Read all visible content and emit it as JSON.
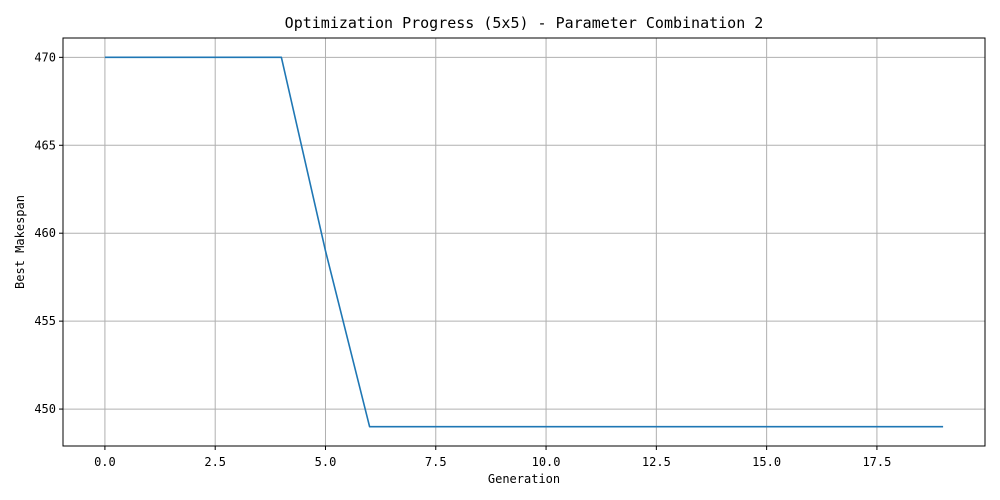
{
  "chart_data": {
    "type": "line",
    "title": "Optimization Progress (5x5) - Parameter Combination 2",
    "xlabel": "Generation",
    "ylabel": "Best Makespan",
    "xlim": [
      -0.95,
      19.95
    ],
    "ylim": [
      447.9,
      471.1
    ],
    "xticks": [
      0.0,
      2.5,
      5.0,
      7.5,
      10.0,
      12.5,
      15.0,
      17.5
    ],
    "xtick_labels": [
      "0.0",
      "2.5",
      "5.0",
      "7.5",
      "10.0",
      "12.5",
      "15.0",
      "17.5"
    ],
    "yticks": [
      450,
      455,
      460,
      465,
      470
    ],
    "ytick_labels": [
      "450",
      "455",
      "460",
      "465",
      "470"
    ],
    "grid": true,
    "series": [
      {
        "color": "#1f77b4",
        "x": [
          0,
          1,
          2,
          3,
          4,
          5,
          6,
          7,
          8,
          9,
          10,
          11,
          12,
          13,
          14,
          15,
          16,
          17,
          18,
          19
        ],
        "y": [
          470,
          470,
          470,
          470,
          470,
          459,
          449,
          449,
          449,
          449,
          449,
          449,
          449,
          449,
          449,
          449,
          449,
          449,
          449,
          449
        ]
      }
    ]
  }
}
